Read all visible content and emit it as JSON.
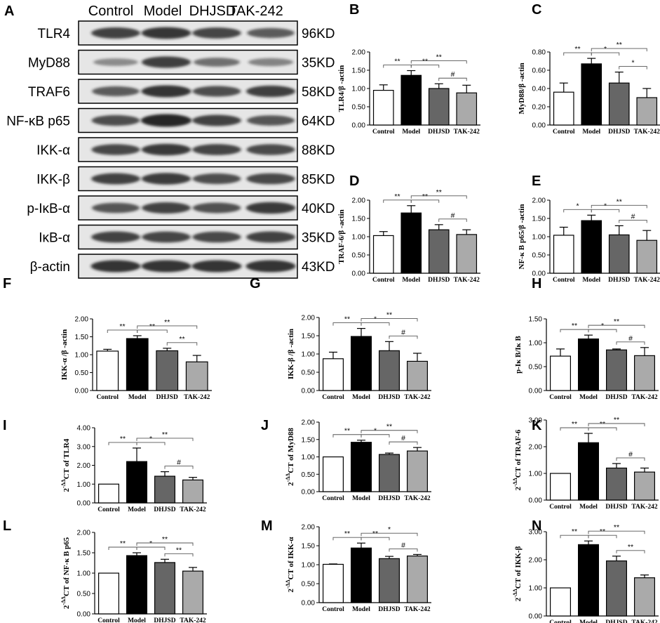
{
  "blot": {
    "panel_letter": "A",
    "groups": [
      "Control",
      "Model",
      "DHJSD",
      "TAK-242"
    ],
    "rows": [
      {
        "protein": "TLR4",
        "size": "96KD",
        "intensity": [
          0.8,
          0.88,
          0.78,
          0.62
        ]
      },
      {
        "protein": "MyD88",
        "size": "35KD",
        "intensity": [
          0.28,
          0.82,
          0.48,
          0.34
        ]
      },
      {
        "protein": "TRAF6",
        "size": "58KD",
        "intensity": [
          0.62,
          0.9,
          0.72,
          0.82
        ]
      },
      {
        "protein": "NF-κB p65",
        "size": "64KD",
        "intensity": [
          0.72,
          1.0,
          0.8,
          0.66
        ]
      },
      {
        "protein": "IKK-α",
        "size": "88KD",
        "intensity": [
          0.75,
          0.86,
          0.78,
          0.74
        ]
      },
      {
        "protein": "IKK-β",
        "size": "85KD",
        "intensity": [
          0.8,
          0.84,
          0.72,
          0.76
        ]
      },
      {
        "protein": "p-IκB-α",
        "size": "40KD",
        "intensity": [
          0.66,
          0.8,
          0.7,
          0.86
        ]
      },
      {
        "protein": "IκB-α",
        "size": "35KD",
        "intensity": [
          0.8,
          0.78,
          0.76,
          0.8
        ]
      },
      {
        "protein": "β-actin",
        "size": "43KD",
        "intensity": [
          0.9,
          0.9,
          0.9,
          0.9
        ]
      }
    ]
  },
  "colors": {
    "bar_fills": [
      "#ffffff",
      "#000000",
      "#666666",
      "#aaaaaa"
    ],
    "blot_background": "#e6e6e6",
    "band": "#1a1a1a"
  },
  "chart_data": [
    {
      "id": "B",
      "type": "bar",
      "letter": "B",
      "categories": [
        "Control",
        "Model",
        "DHJSD",
        "TAK-242"
      ],
      "values": [
        0.95,
        1.36,
        1.0,
        0.88
      ],
      "errors": [
        0.15,
        0.13,
        0.13,
        0.21
      ],
      "ylabel": "TLR4/β -actin",
      "ylim": [
        0,
        2.0
      ],
      "yticks": [
        0.0,
        0.5,
        1.0,
        1.5,
        2.0
      ],
      "tick_decimals": 2,
      "significance": [
        {
          "text": "**",
          "from": 0,
          "to": 1
        },
        {
          "text": "**",
          "from": 1,
          "to": 2
        },
        {
          "text": "#",
          "from": 2,
          "to": 3
        },
        {
          "text": "**",
          "from": 1,
          "to": 3
        }
      ]
    },
    {
      "id": "C",
      "type": "bar",
      "letter": "C",
      "categories": [
        "Control",
        "Model",
        "DHJSD",
        "TAK-242"
      ],
      "values": [
        0.36,
        0.67,
        0.46,
        0.3
      ],
      "errors": [
        0.1,
        0.06,
        0.12,
        0.1
      ],
      "ylabel": "MyD88/β -actin",
      "ylim": [
        0,
        0.8
      ],
      "yticks": [
        0.0,
        0.2,
        0.4,
        0.6,
        0.8
      ],
      "tick_decimals": 2,
      "significance": [
        {
          "text": "**",
          "from": 0,
          "to": 1
        },
        {
          "text": "*",
          "from": 1,
          "to": 2
        },
        {
          "text": "*",
          "from": 2,
          "to": 3
        },
        {
          "text": "**",
          "from": 1,
          "to": 3
        }
      ]
    },
    {
      "id": "D",
      "type": "bar",
      "letter": "D",
      "categories": [
        "Control",
        "Model",
        "DHJSD",
        "TAK-242"
      ],
      "values": [
        1.03,
        1.65,
        1.19,
        1.06
      ],
      "errors": [
        0.11,
        0.2,
        0.14,
        0.13
      ],
      "ylabel": "TRAF-6/β -actin",
      "ylim": [
        0,
        2.0
      ],
      "yticks": [
        0.0,
        0.5,
        1.0,
        1.5,
        2.0
      ],
      "tick_decimals": 2,
      "significance": [
        {
          "text": "**",
          "from": 0,
          "to": 1
        },
        {
          "text": "**",
          "from": 1,
          "to": 2
        },
        {
          "text": "#",
          "from": 2,
          "to": 3
        },
        {
          "text": "**",
          "from": 1,
          "to": 3
        }
      ]
    },
    {
      "id": "E",
      "type": "bar",
      "letter": "E",
      "categories": [
        "Control",
        "Model",
        "DHJSD",
        "TAK-242"
      ],
      "values": [
        1.04,
        1.44,
        1.05,
        0.9
      ],
      "errors": [
        0.22,
        0.15,
        0.25,
        0.27
      ],
      "ylabel": "NF-κ B p65/β -actin",
      "ylim": [
        0,
        2.0
      ],
      "yticks": [
        0.0,
        0.5,
        1.0,
        1.5,
        2.0
      ],
      "tick_decimals": 2,
      "significance": [
        {
          "text": "*",
          "from": 0,
          "to": 1
        },
        {
          "text": "*",
          "from": 1,
          "to": 2
        },
        {
          "text": "#",
          "from": 2,
          "to": 3
        },
        {
          "text": "**",
          "from": 1,
          "to": 3
        }
      ]
    },
    {
      "id": "F",
      "type": "bar",
      "letter": "F",
      "categories": [
        "Control",
        "Model",
        "DHJSD",
        "TAK-242"
      ],
      "values": [
        1.1,
        1.45,
        1.11,
        0.8
      ],
      "errors": [
        0.05,
        0.08,
        0.07,
        0.18
      ],
      "ylabel": "IKK-α /β -actin",
      "ylim": [
        0,
        2.0
      ],
      "yticks": [
        0.0,
        0.5,
        1.0,
        1.5,
        2.0
      ],
      "tick_decimals": 2,
      "significance": [
        {
          "text": "**",
          "from": 0,
          "to": 1
        },
        {
          "text": "**",
          "from": 1,
          "to": 2
        },
        {
          "text": "**",
          "from": 2,
          "to": 3
        },
        {
          "text": "**",
          "from": 1,
          "to": 3
        }
      ]
    },
    {
      "id": "G",
      "type": "bar",
      "letter": "G",
      "categories": [
        "Control",
        "Model",
        "DHJSD",
        "TAK-242"
      ],
      "values": [
        0.87,
        1.48,
        1.09,
        0.8
      ],
      "errors": [
        0.18,
        0.22,
        0.25,
        0.22
      ],
      "ylabel": "IKK-β /β -actin",
      "ylim": [
        0,
        2.0
      ],
      "yticks": [
        0.0,
        0.5,
        1.0,
        1.5,
        2.0
      ],
      "tick_decimals": 2,
      "significance": [
        {
          "text": "**",
          "from": 0,
          "to": 1
        },
        {
          "text": "*",
          "from": 1,
          "to": 2
        },
        {
          "text": "#",
          "from": 2,
          "to": 3
        },
        {
          "text": "**",
          "from": 1,
          "to": 3
        }
      ]
    },
    {
      "id": "H",
      "type": "bar",
      "letter": "H",
      "categories": [
        "Control",
        "Model",
        "DHJSD",
        "TAK-242"
      ],
      "values": [
        0.72,
        1.08,
        0.85,
        0.73
      ],
      "errors": [
        0.15,
        0.08,
        0.02,
        0.17
      ],
      "ylabel": "p-Iκ B/Iκ B",
      "ylim": [
        0,
        1.5
      ],
      "yticks": [
        0.0,
        0.5,
        1.0,
        1.5
      ],
      "tick_decimals": 2,
      "significance": [
        {
          "text": "**",
          "from": 0,
          "to": 1
        },
        {
          "text": "*",
          "from": 1,
          "to": 2
        },
        {
          "text": "#",
          "from": 2,
          "to": 3
        },
        {
          "text": "**",
          "from": 1,
          "to": 3
        }
      ]
    },
    {
      "id": "I",
      "type": "bar",
      "letter": "I",
      "categories": [
        "Control",
        "Model",
        "DHJSD",
        "TAK-242"
      ],
      "values": [
        1.0,
        2.2,
        1.42,
        1.22
      ],
      "errors": [
        0.0,
        0.72,
        0.24,
        0.14
      ],
      "ylabel": "2-ΔΔCT of TLR4",
      "ylim": [
        0,
        4.0
      ],
      "yticks": [
        0.0,
        1.0,
        2.0,
        3.0,
        4.0
      ],
      "tick_decimals": 2,
      "significance": [
        {
          "text": "**",
          "from": 0,
          "to": 1
        },
        {
          "text": "*",
          "from": 1,
          "to": 2
        },
        {
          "text": "#",
          "from": 2,
          "to": 3
        },
        {
          "text": "**",
          "from": 1,
          "to": 3
        }
      ]
    },
    {
      "id": "J",
      "type": "bar",
      "letter": "J",
      "categories": [
        "Control",
        "Model",
        "DHJSD",
        "TAK-242"
      ],
      "values": [
        1.0,
        1.42,
        1.07,
        1.17
      ],
      "errors": [
        0.0,
        0.06,
        0.04,
        0.1
      ],
      "ylabel": "2-ΔΔCT of MyD88",
      "ylim": [
        0,
        2.0
      ],
      "yticks": [
        0.0,
        0.5,
        1.0,
        1.5,
        2.0
      ],
      "tick_decimals": 2,
      "significance": [
        {
          "text": "**",
          "from": 0,
          "to": 1
        },
        {
          "text": "*",
          "from": 1,
          "to": 2
        },
        {
          "text": "#",
          "from": 2,
          "to": 3
        },
        {
          "text": "**",
          "from": 1,
          "to": 3
        }
      ]
    },
    {
      "id": "K",
      "type": "bar",
      "letter": "K",
      "categories": [
        "Control",
        "Model",
        "DHJSD",
        "TAK-242"
      ],
      "values": [
        1.0,
        2.15,
        1.2,
        1.05
      ],
      "errors": [
        0.0,
        0.35,
        0.17,
        0.15
      ],
      "ylabel": "2-ΔΔCT of TRAF-6",
      "ylim": [
        0,
        3.0
      ],
      "yticks": [
        0.0,
        1.0,
        2.0,
        3.0
      ],
      "tick_decimals": 2,
      "significance": [
        {
          "text": "**",
          "from": 0,
          "to": 1
        },
        {
          "text": "**",
          "from": 1,
          "to": 2
        },
        {
          "text": "#",
          "from": 2,
          "to": 3
        },
        {
          "text": "**",
          "from": 1,
          "to": 3
        }
      ]
    },
    {
      "id": "L",
      "type": "bar",
      "letter": "L",
      "categories": [
        "Control",
        "Model",
        "DHJSD",
        "TAK-242"
      ],
      "values": [
        1.0,
        1.43,
        1.26,
        1.05
      ],
      "errors": [
        0.0,
        0.07,
        0.08,
        0.09
      ],
      "ylabel": "2-ΔΔCT of NF-κ B p65",
      "ylim": [
        0,
        2.0
      ],
      "yticks": [
        0.0,
        0.5,
        1.0,
        1.5,
        2.0
      ],
      "tick_decimals": 2,
      "significance": [
        {
          "text": "**",
          "from": 0,
          "to": 1
        },
        {
          "text": "*",
          "from": 1,
          "to": 2
        },
        {
          "text": "**",
          "from": 2,
          "to": 3
        },
        {
          "text": "**",
          "from": 1,
          "to": 3
        }
      ]
    },
    {
      "id": "M",
      "type": "bar",
      "letter": "M",
      "categories": [
        "Control",
        "Model",
        "DHJSD",
        "TAK-242"
      ],
      "values": [
        1.01,
        1.44,
        1.16,
        1.23
      ],
      "errors": [
        0.01,
        0.13,
        0.06,
        0.04
      ],
      "ylabel": "2-ΔΔCT of IKK-α",
      "ylim": [
        0,
        2.0
      ],
      "yticks": [
        0.0,
        0.5,
        1.0,
        1.5,
        2.0
      ],
      "tick_decimals": 2,
      "significance": [
        {
          "text": "**",
          "from": 0,
          "to": 1
        },
        {
          "text": "**",
          "from": 1,
          "to": 2
        },
        {
          "text": "#",
          "from": 2,
          "to": 3
        },
        {
          "text": "*",
          "from": 1,
          "to": 3
        }
      ]
    },
    {
      "id": "N",
      "type": "bar",
      "letter": "N",
      "categories": [
        "Control",
        "Model",
        "DHJSD",
        "TAK-242"
      ],
      "values": [
        1.0,
        2.54,
        1.96,
        1.36
      ],
      "errors": [
        0.0,
        0.13,
        0.17,
        0.1
      ],
      "ylabel": "2-ΔΔCT of IKK-β",
      "ylim": [
        0,
        3.0
      ],
      "yticks": [
        0.0,
        1.0,
        2.0,
        3.0
      ],
      "tick_decimals": 2,
      "significance": [
        {
          "text": "**",
          "from": 0,
          "to": 1
        },
        {
          "text": "**",
          "from": 1,
          "to": 2
        },
        {
          "text": "**",
          "from": 2,
          "to": 3
        },
        {
          "text": "**",
          "from": 1,
          "to": 3
        }
      ]
    }
  ]
}
